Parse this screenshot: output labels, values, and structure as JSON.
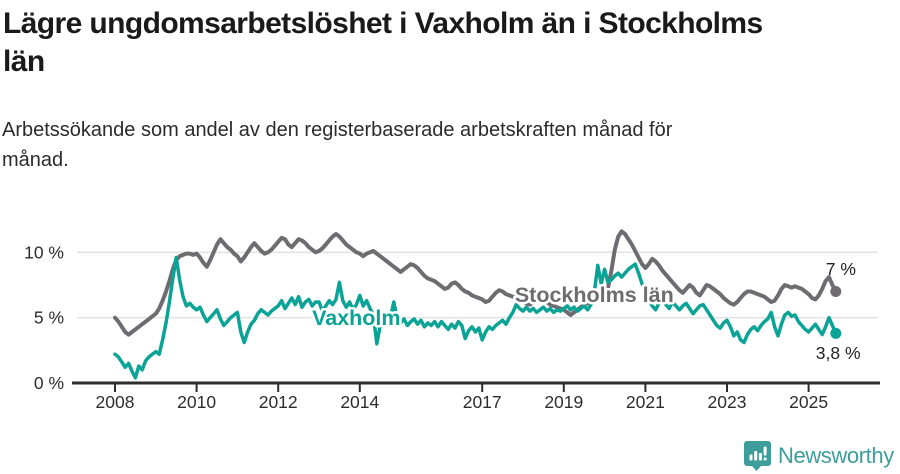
{
  "header": {
    "title_lines": [
      "Lägre ungdomsarbetslöshet i Vaxholm än i Stockholms",
      "län"
    ],
    "subtitle_lines": [
      "Arbetssökande som andel av den registerbaserade arbetskraften månad för",
      "månad."
    ]
  },
  "chart_data": {
    "type": "line",
    "title": "Lägre ungdomsarbetslöshet i Vaxholm än i Stockholms län",
    "subtitle": "Arbetssökande som andel av den registerbaserade arbetskraften månad för månad.",
    "unit": "%",
    "x_monthly_from": "2008-01",
    "x_monthly_to": "2025-09",
    "ylim": [
      0,
      12
    ],
    "grid": "horizontal",
    "yticks": [
      {
        "value": 0,
        "label": "0 %"
      },
      {
        "value": 5,
        "label": "5 %"
      },
      {
        "value": 10,
        "label": "10 %"
      }
    ],
    "xticks": [
      {
        "year": 2008,
        "label": "2008"
      },
      {
        "year": 2010,
        "label": "2010"
      },
      {
        "year": 2012,
        "label": "2012"
      },
      {
        "year": 2014,
        "label": "2014"
      },
      {
        "year": 2017,
        "label": "2017"
      },
      {
        "year": 2019,
        "label": "2019"
      },
      {
        "year": 2021,
        "label": "2021"
      },
      {
        "year": 2023,
        "label": "2023"
      },
      {
        "year": 2025,
        "label": "2025"
      }
    ],
    "annotations": [
      {
        "text": "Vaxholm",
        "x_year": 2012.83,
        "y_pct": 4.44,
        "color": "#0aa396"
      },
      {
        "text": "Stockholms län",
        "x_year": 2017.8,
        "y_pct": 6.2,
        "color": "#6e6c71"
      }
    ],
    "series": [
      {
        "name": "Stockholms län",
        "color": "#6e6c71",
        "end_label": "7 %",
        "end_value": 7.0,
        "values": [
          5.0,
          4.7,
          4.3,
          3.9,
          3.7,
          3.9,
          4.1,
          4.3,
          4.5,
          4.7,
          4.9,
          5.1,
          5.3,
          5.7,
          6.3,
          7.0,
          7.8,
          8.7,
          9.4,
          9.7,
          9.8,
          9.9,
          9.9,
          9.8,
          9.9,
          9.6,
          9.2,
          8.9,
          9.4,
          10.0,
          10.6,
          11.0,
          10.7,
          10.4,
          10.2,
          9.9,
          9.7,
          9.3,
          9.6,
          10.0,
          10.4,
          10.7,
          10.4,
          10.1,
          9.9,
          10.0,
          10.2,
          10.5,
          10.8,
          11.1,
          11.0,
          10.6,
          10.4,
          10.7,
          11.0,
          10.9,
          10.7,
          10.4,
          10.2,
          10.0,
          10.1,
          10.3,
          10.6,
          10.9,
          11.2,
          11.4,
          11.2,
          10.9,
          10.6,
          10.4,
          10.2,
          10.0,
          9.9,
          9.7,
          9.9,
          10.0,
          10.1,
          9.9,
          9.7,
          9.5,
          9.3,
          9.1,
          8.9,
          8.7,
          8.5,
          8.7,
          8.9,
          9.1,
          9.0,
          8.8,
          8.5,
          8.2,
          8.0,
          7.9,
          7.8,
          7.6,
          7.4,
          7.2,
          7.3,
          7.6,
          7.7,
          7.5,
          7.2,
          7.0,
          6.9,
          6.7,
          6.6,
          6.5,
          6.4,
          6.2,
          6.3,
          6.6,
          6.9,
          7.1,
          7.0,
          6.8,
          6.7,
          6.6,
          6.5,
          6.4,
          6.2,
          6.1,
          6.0,
          6.2,
          6.4,
          6.5,
          6.4,
          6.2,
          6.0,
          5.9,
          5.8,
          5.7,
          5.6,
          5.4,
          5.2,
          5.4,
          5.6,
          5.8,
          6.0,
          6.1,
          6.2,
          6.3,
          6.4,
          6.6,
          6.9,
          7.3,
          8.6,
          10.2,
          11.2,
          11.6,
          11.4,
          11.0,
          10.6,
          10.1,
          9.6,
          9.1,
          8.8,
          9.1,
          9.5,
          9.3,
          9.0,
          8.6,
          8.3,
          8.0,
          7.7,
          7.4,
          7.1,
          6.9,
          7.2,
          7.5,
          7.3,
          6.9,
          6.7,
          7.1,
          7.5,
          7.4,
          7.2,
          7.0,
          6.8,
          6.5,
          6.3,
          6.1,
          6.0,
          6.2,
          6.5,
          6.8,
          7.0,
          7.0,
          6.9,
          6.8,
          6.7,
          6.6,
          6.4,
          6.2,
          6.3,
          6.7,
          7.2,
          7.5,
          7.4,
          7.3,
          7.4,
          7.3,
          7.2,
          7.0,
          6.8,
          6.5,
          6.4,
          6.7,
          7.2,
          7.8,
          8.1,
          7.5,
          7.0
        ]
      },
      {
        "name": "Vaxholm",
        "color": "#0aa396",
        "end_label": "3,8 %",
        "end_value": 3.8,
        "values": [
          2.2,
          2.0,
          1.6,
          1.2,
          1.5,
          0.9,
          0.4,
          1.3,
          1.0,
          1.7,
          2.0,
          2.2,
          2.4,
          2.2,
          3.3,
          4.6,
          6.2,
          8.0,
          9.6,
          7.9,
          6.6,
          5.9,
          6.1,
          5.8,
          5.6,
          5.8,
          5.2,
          4.7,
          5.0,
          5.3,
          5.6,
          4.9,
          4.4,
          4.7,
          5.0,
          5.2,
          5.4,
          3.9,
          3.1,
          3.9,
          4.5,
          4.8,
          5.3,
          5.6,
          5.4,
          5.2,
          5.5,
          5.7,
          5.9,
          6.3,
          5.7,
          6.1,
          6.5,
          6.0,
          6.6,
          5.8,
          6.2,
          6.4,
          5.9,
          6.2,
          6.2,
          5.5,
          5.9,
          6.3,
          6.0,
          6.4,
          7.7,
          6.3,
          5.8,
          6.2,
          5.6,
          6.0,
          6.7,
          5.9,
          6.3,
          5.7,
          5.2,
          3.0,
          4.4,
          5.0,
          4.6,
          5.0,
          6.2,
          4.9,
          4.6,
          4.9,
          4.4,
          4.7,
          4.9,
          4.5,
          4.8,
          4.3,
          4.6,
          4.4,
          4.7,
          4.3,
          4.7,
          4.4,
          4.1,
          4.5,
          4.2,
          4.7,
          4.4,
          3.4,
          4.0,
          4.3,
          3.9,
          4.2,
          3.3,
          3.9,
          4.3,
          4.1,
          4.4,
          4.6,
          4.8,
          4.5,
          5.0,
          5.4,
          6.0,
          5.7,
          5.5,
          5.8,
          5.5,
          5.7,
          5.4,
          5.6,
          5.8,
          5.5,
          5.7,
          5.4,
          5.6,
          5.5,
          5.7,
          5.9,
          5.6,
          5.8,
          5.5,
          5.7,
          5.9,
          5.6,
          6.0,
          7.0,
          9.0,
          7.6,
          8.7,
          7.7,
          7.9,
          8.2,
          8.4,
          8.1,
          8.4,
          8.7,
          8.9,
          9.1,
          8.4,
          7.6,
          7.0,
          6.4,
          5.9,
          5.6,
          6.1,
          6.4,
          6.0,
          5.7,
          6.2,
          5.9,
          5.6,
          5.9,
          6.1,
          5.7,
          5.3,
          5.6,
          5.9,
          6.0,
          5.6,
          5.2,
          4.8,
          4.4,
          4.2,
          4.6,
          4.8,
          4.3,
          3.6,
          3.9,
          3.3,
          3.1,
          3.7,
          4.1,
          4.3,
          4.0,
          4.4,
          4.7,
          4.9,
          5.4,
          4.3,
          3.6,
          4.5,
          5.2,
          5.4,
          5.1,
          5.2,
          4.7,
          4.4,
          4.1,
          3.9,
          4.2,
          4.5,
          4.1,
          3.7,
          4.3,
          5.0,
          4.4,
          3.8
        ]
      }
    ]
  },
  "footer": {
    "brand": "Newsworthy",
    "brand_color": "#3c9d9a",
    "logo_icon": "bar-chart-speech-bubble-icon"
  }
}
